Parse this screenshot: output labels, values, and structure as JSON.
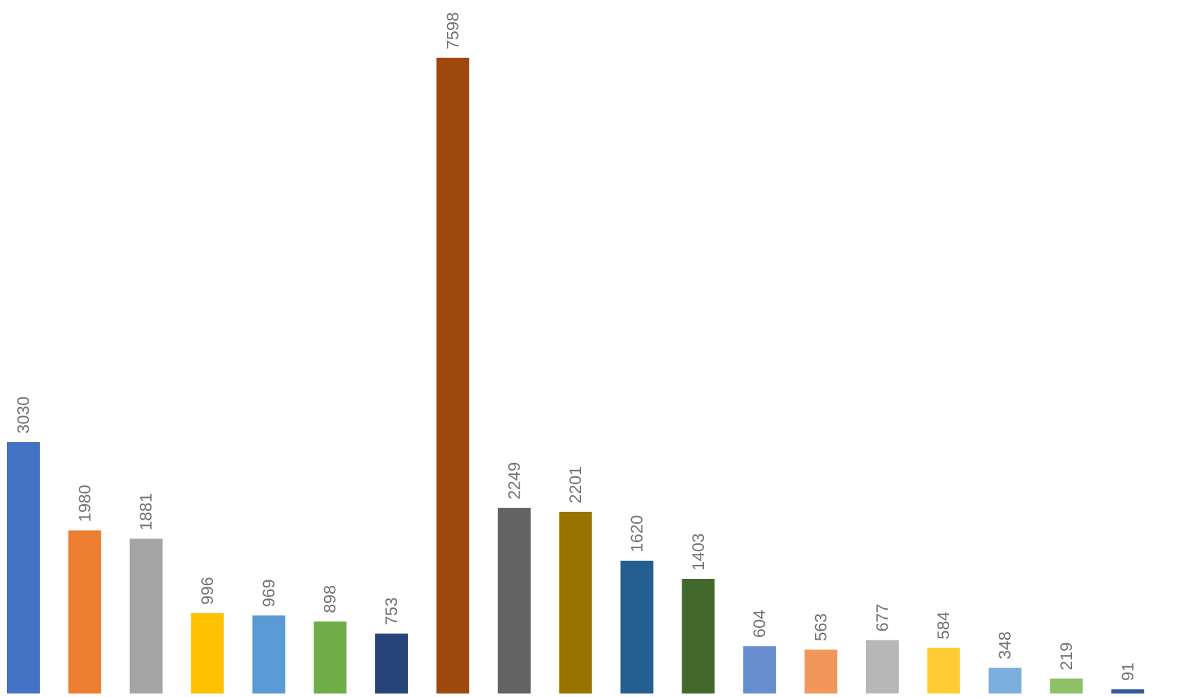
{
  "chart_data": {
    "type": "bar",
    "values": [
      3030,
      1980,
      1881,
      996,
      969,
      898,
      753,
      7598,
      2249,
      2201,
      1620,
      1403,
      604,
      563,
      677,
      584,
      348,
      219,
      91
    ],
    "colors": [
      "#4472c4",
      "#ed7d31",
      "#a5a5a5",
      "#ffc000",
      "#5b9bd5",
      "#70ad47",
      "#264478",
      "#9e480e",
      "#636363",
      "#997300",
      "#255e91",
      "#43682b",
      "#698ed0",
      "#f1975a",
      "#b7b7b7",
      "#ffcd33",
      "#7cafdd",
      "#8cc168",
      "#335aa1"
    ],
    "data_labels": [
      "3030",
      "1980",
      "1881",
      "996",
      "969",
      "898",
      "753",
      "7598",
      "2249",
      "2201",
      "1620",
      "1403",
      "604",
      "563",
      "677",
      "584",
      "348",
      "219",
      "91"
    ],
    "ylim": [
      0,
      8285
    ],
    "label_color": "#767171",
    "axis_color": "#d9d9d9"
  }
}
